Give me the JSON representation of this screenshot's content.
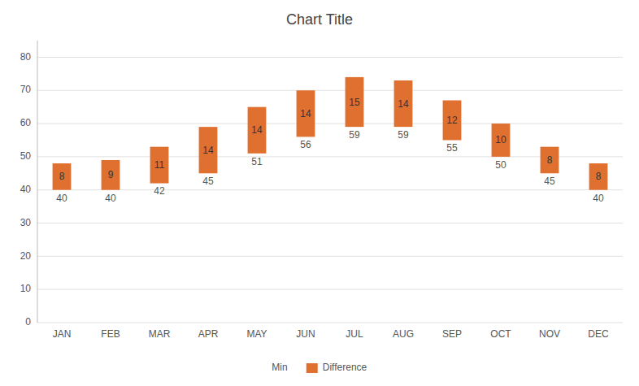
{
  "chart_data": {
    "type": "bar",
    "title": "Chart Title",
    "categories": [
      "JAN",
      "FEB",
      "MAR",
      "APR",
      "MAY",
      "JUN",
      "JUL",
      "AUG",
      "SEP",
      "OCT",
      "NOV",
      "DEC"
    ],
    "series": [
      {
        "name": "Min",
        "values": [
          40,
          40,
          42,
          45,
          51,
          56,
          59,
          59,
          55,
          50,
          45,
          40
        ]
      },
      {
        "name": "Difference",
        "color": "#E07030",
        "values": [
          8,
          9,
          11,
          14,
          14,
          14,
          15,
          14,
          12,
          10,
          8,
          8
        ]
      }
    ],
    "stacked": true,
    "data_labels": true,
    "ylim": [
      0,
      85
    ],
    "yticks": [
      0,
      10,
      20,
      30,
      40,
      50,
      60,
      70,
      80
    ],
    "grid": true,
    "legend": "bottom"
  }
}
